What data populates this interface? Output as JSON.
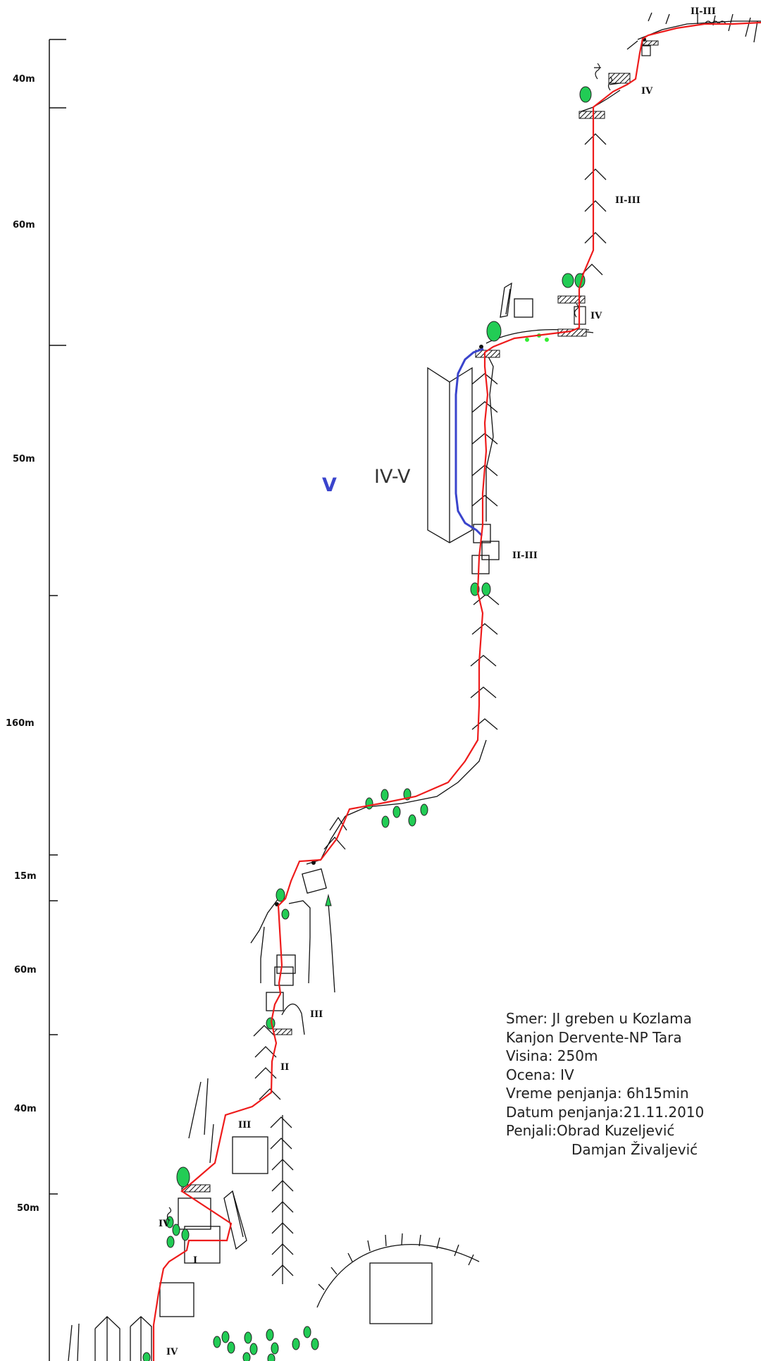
{
  "scale": {
    "labels": [
      "40m",
      "60m",
      "50m",
      "160m",
      "15m",
      "60m",
      "40m",
      "50m"
    ]
  },
  "grades": {
    "top": "II-III",
    "upper_iv": "IV",
    "upper_ii_iii": "II-III",
    "mid_iv": "IV",
    "dihedral_alt": "V",
    "dihedral": "IV-V",
    "below_dihedral": "II-III",
    "lower_iii": "III",
    "lower_ii": "II",
    "low_iii": "III",
    "low_iv": "IV",
    "low_i": "I",
    "start_iv": "IV"
  },
  "info": {
    "smer": "Smer: JI greben u Kozlama",
    "kanjon": "Kanjon Dervente-NP Tara",
    "visina": "Visina: 250m",
    "ocena": "Ocena: IV",
    "vreme": "Vreme penjanja:  6h15min",
    "datum": "Datum penjanja:21.11.2010",
    "penjali": "Penjali:Obrad Kuzeljević",
    "penjali2": "Damjan Živaljević"
  },
  "colors": {
    "route": "#ee1c1c",
    "variant": "#3a44cc",
    "tree": "#22cc55",
    "ink": "#111111",
    "grade_v": "#3a44cc"
  }
}
